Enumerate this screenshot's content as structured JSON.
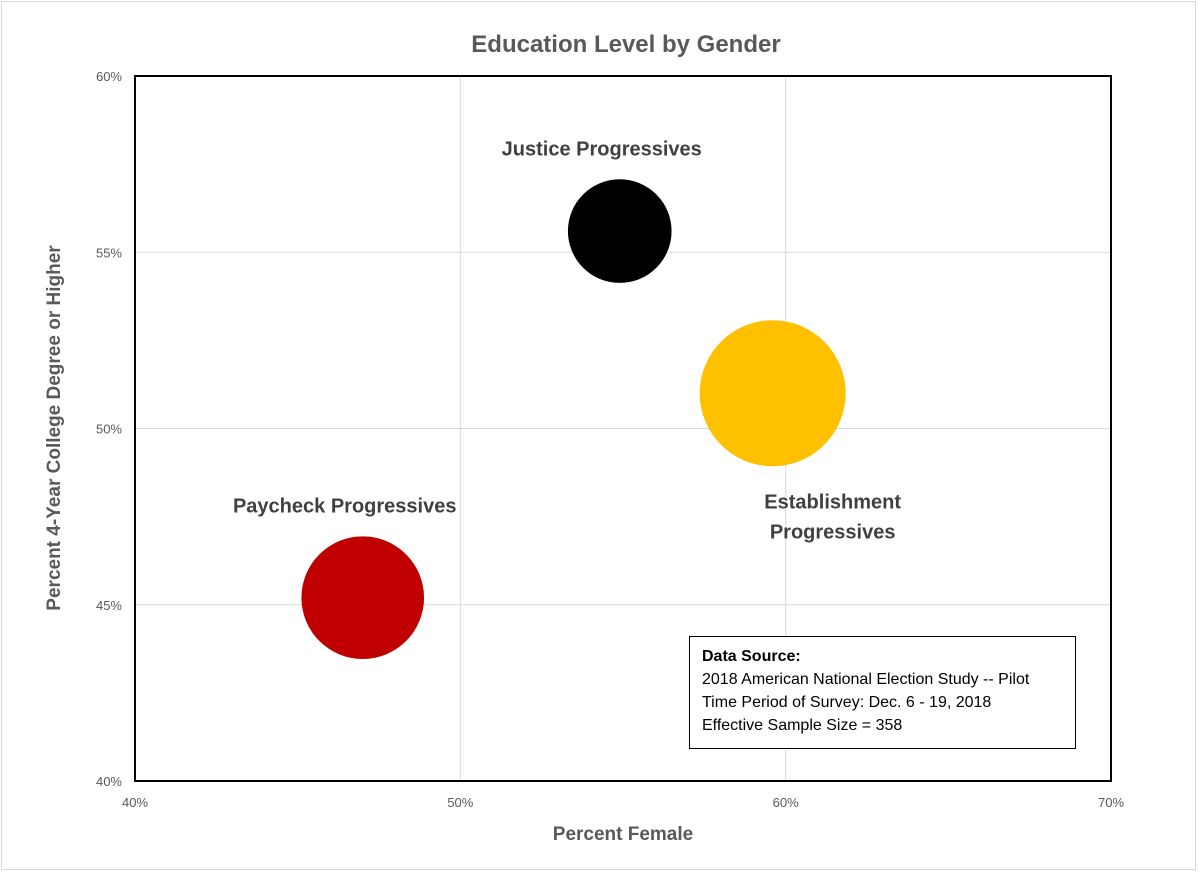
{
  "chart_data": {
    "type": "scatter",
    "title": "Education Level by Gender",
    "xlabel": "Percent Female",
    "ylabel": "Percent 4-Year College Degree or Higher",
    "xlim": [
      40,
      70
    ],
    "ylim": [
      40,
      60
    ],
    "x_ticks": [
      40,
      50,
      60,
      70
    ],
    "y_ticks": [
      40,
      45,
      50,
      55,
      60
    ],
    "x_tick_labels": [
      "40%",
      "50%",
      "60%",
      "70%"
    ],
    "y_tick_labels": [
      "40%",
      "45%",
      "50%",
      "55%",
      "60%"
    ],
    "grid": true,
    "series": [
      {
        "name": "Justice Progressives",
        "label_lines": [
          "Justice Progressives"
        ],
        "x": 54.9,
        "y": 55.6,
        "size": 0.71,
        "color": "#000000",
        "label_position": "above"
      },
      {
        "name": "Establishment Progressives",
        "label_lines": [
          "Establishment",
          "Progressives"
        ],
        "x": 59.6,
        "y": 51.0,
        "size": 1.0,
        "color": "#FFC000",
        "label_position": "below"
      },
      {
        "name": "Paycheck Progressives",
        "label_lines": [
          "Paycheck Progressives"
        ],
        "x": 47.0,
        "y": 45.2,
        "size": 0.84,
        "color": "#C00000",
        "label_position": "above"
      }
    ]
  },
  "source_box": {
    "heading": "Data Source:",
    "lines": [
      "2018 American National Election Study -- Pilot",
      "Time Period of Survey: Dec. 6 - 19, 2018",
      "Effective Sample Size = 358"
    ]
  }
}
